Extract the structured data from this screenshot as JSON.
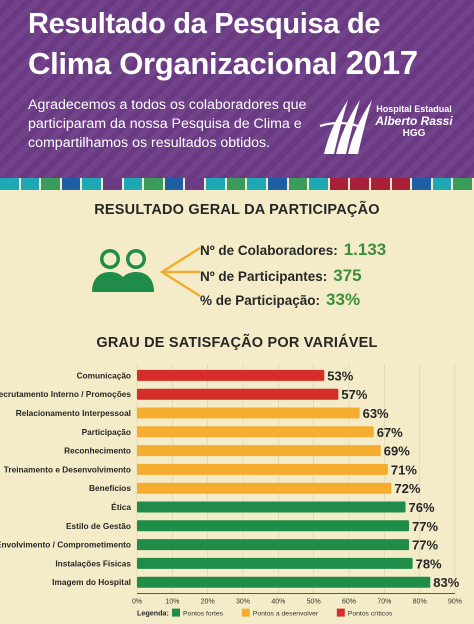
{
  "header": {
    "title_line1": "Resultado da Pesquisa de",
    "title_line2": "Clima Organizacional",
    "year": "2017",
    "intro": "Agradecemos a todos os colaboradores que participaram da nossa Pesquisa de Clima e compartilhamos os resultados obtidos.",
    "logo": {
      "line1": "Hospital Estadual",
      "line2": "Alberto Rassi",
      "line3": "HGG"
    }
  },
  "colors": {
    "purple": "#6c3b86",
    "green": "#1f8c4a",
    "orange": "#f5ad2f",
    "red": "#d42d2a",
    "stripe": [
      "#1ea7b5",
      "#1ea7b5",
      "#3a9c5c",
      "#1e5fa3",
      "#1ea7b5",
      "#6c3b86",
      "#1ea7b5",
      "#3a9c5c",
      "#1e5fa3",
      "#6c3b86",
      "#1ea7b5",
      "#3a9c5c",
      "#1ea7b5",
      "#1e5fa3",
      "#3a9c5c",
      "#1ea7b5",
      "#a8213a",
      "#a8213a",
      "#a8213a",
      "#a8213a",
      "#1e5fa3",
      "#1ea7b5",
      "#3a9c5c"
    ]
  },
  "participation": {
    "title": "RESULTADO GERAL DA PARTICIPAÇÃO",
    "icon": "people-icon",
    "stats": [
      {
        "label": "Nº de Colaboradores:",
        "value": "1.133"
      },
      {
        "label": "Nº de Participantes:",
        "value": "375"
      },
      {
        "label": "% de Participação:",
        "value": "33%"
      }
    ]
  },
  "chart_title": "GRAU DE SATISFAÇÃO POR VARIÁVEL",
  "chart_data": {
    "type": "bar",
    "orientation": "horizontal",
    "title": "GRAU DE SATISFAÇÃO POR VARIÁVEL",
    "categories": [
      "Comunicação",
      "Recrutamento Interno / Promoções",
      "Relacionamento Interpessoal",
      "Participação",
      "Reconhecimento",
      "Treinamento e Desenvolvimento",
      "Benefícios",
      "Ética",
      "Estilo de Gestão",
      "Envolvimento / Comprometimento",
      "Instalações Físicas",
      "Imagem do Hospital"
    ],
    "values": [
      53,
      57,
      63,
      67,
      69,
      71,
      72,
      76,
      77,
      77,
      78,
      83
    ],
    "value_labels": [
      "53%",
      "57%",
      "63%",
      "67%",
      "69%",
      "71%",
      "72%",
      "76%",
      "77%",
      "77%",
      "78%",
      "83%"
    ],
    "groups": [
      "critico",
      "critico",
      "desenvolver",
      "desenvolver",
      "desenvolver",
      "desenvolver",
      "desenvolver",
      "forte",
      "forte",
      "forte",
      "forte",
      "forte"
    ],
    "xlim": [
      0,
      90
    ],
    "xticks": [
      "0%",
      "10%",
      "20%",
      "30%",
      "40%",
      "50%",
      "60%",
      "70%",
      "80%",
      "90%"
    ],
    "legend": {
      "title": "Legenda:",
      "position": "bottom",
      "items": [
        {
          "key": "forte",
          "label": "Pontos fortes",
          "color": "#1f8c4a"
        },
        {
          "key": "desenvolver",
          "label": "Pontos a desenvolver",
          "color": "#f5ad2f"
        },
        {
          "key": "critico",
          "label": "Pontos críticos",
          "color": "#d42d2a"
        }
      ]
    }
  }
}
